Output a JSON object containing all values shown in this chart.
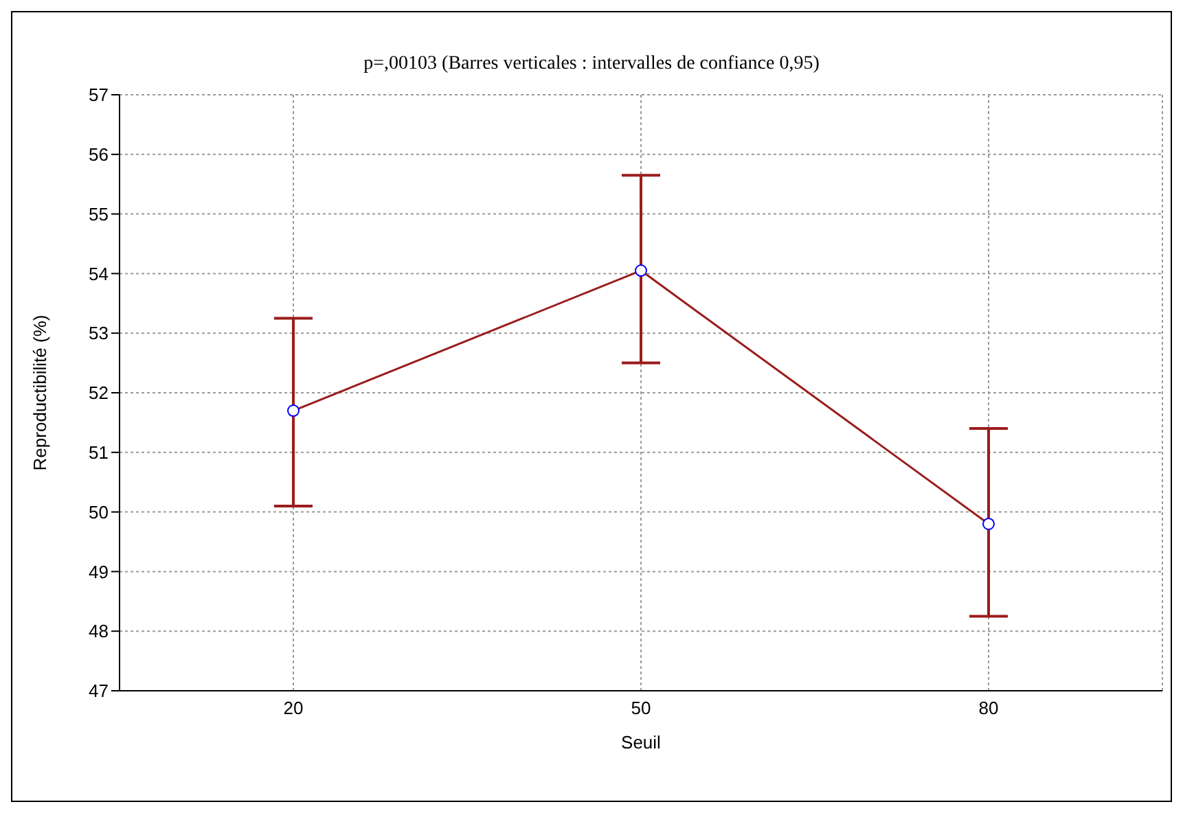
{
  "chart_data": {
    "type": "line",
    "title": "p=,00103 (Barres verticales : intervalles de confiance 0,95)",
    "xlabel": "Seuil",
    "ylabel": "Reproductibilité (%)",
    "categories": [
      "20",
      "50",
      "80"
    ],
    "values": [
      51.7,
      54.05,
      49.8
    ],
    "errors": [
      [
        50.1,
        53.25
      ],
      [
        52.5,
        55.65
      ],
      [
        48.25,
        51.4
      ]
    ],
    "color": "#9b1c1c",
    "ylim": [
      47,
      57
    ],
    "yticks": [
      47,
      48,
      49,
      50,
      51,
      52,
      53,
      54,
      55,
      56,
      57
    ],
    "grid": true,
    "marker": "circle",
    "line_style": "solid"
  }
}
